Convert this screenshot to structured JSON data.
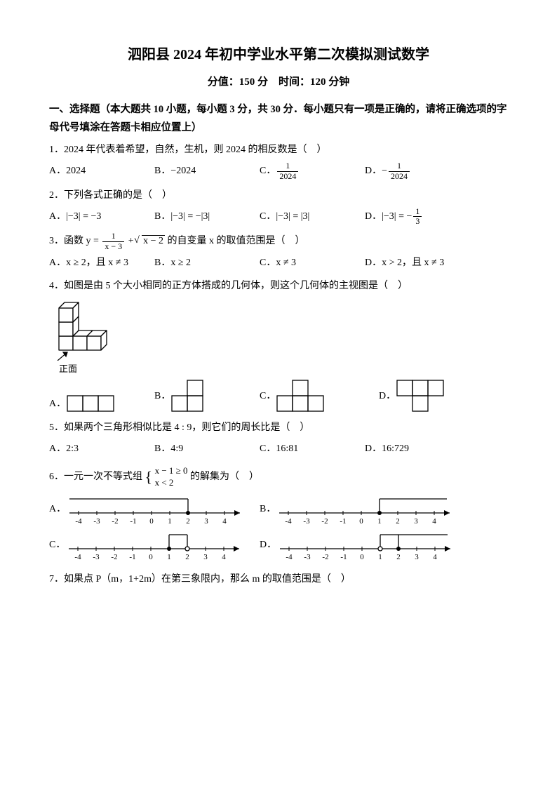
{
  "title": "泗阳县 2024 年初中学业水平第二次模拟测试数学",
  "subtitle_score": "分值：150 分",
  "subtitle_time": "时间：120 分钟",
  "section1": "一、选择题（本大题共 10 小题，每小题 3 分，共 30 分．每小题只有一项是正确的，请将正确选项的字母代号填涂在答题卡相应位置上）",
  "q1": {
    "stem": "1．2024 年代表着希望，自然，生机，则 2024 的相反数是（　）",
    "a": "A．2024",
    "b": "B．−2024",
    "c_pre": "C．",
    "c_num": "1",
    "c_den": "2024",
    "d_pre": "D．−",
    "d_num": "1",
    "d_den": "2024"
  },
  "q2": {
    "stem": "2．下列各式正确的是（　）",
    "a": "A．|−3| = −3",
    "b": "B．|−3| = −|3|",
    "c": "C．|−3| = |3|",
    "d_pre": "D．|−3| = −",
    "d_num": "1",
    "d_den": "3"
  },
  "q3": {
    "stem_pre": "3．函数 y = ",
    "stem_num": "1",
    "stem_den": "x − 3",
    "stem_mid": " + ",
    "stem_rad": "x − 2",
    "stem_post": " 的自变量 x 的取值范围是（　）",
    "a": "A．x ≥ 2，且 x ≠ 3",
    "b": "B．x ≥ 2",
    "c": "C．x ≠ 3",
    "d": "D．x > 2，且 x ≠ 3"
  },
  "q4": {
    "stem": "4．如图是由 5 个大小相同的正方体搭成的几何体，则这个几何体的主视图是（　）",
    "front": "正面",
    "a": "A．",
    "b": "B．",
    "c": "C．",
    "d": "D．"
  },
  "q5": {
    "stem": "5．如果两个三角形相似比是 4 : 9，则它们的周长比是（　）",
    "a": "A．2:3",
    "b": "B．4:9",
    "c": "C．16:81",
    "d": "D．16:729"
  },
  "q6": {
    "stem_pre": "6．一元一次不等式组 ",
    "line1": "x − 1 ≥ 0",
    "line2": "x < 2",
    "stem_post": " 的解集为（　）",
    "a": "A．",
    "b": "B．",
    "c": "C．",
    "d": "D．",
    "ticks": [
      "-4",
      "-3",
      "-2",
      "-1",
      "0",
      "1",
      "2",
      "3",
      "4"
    ]
  },
  "q7": {
    "stem": "7．如果点 P（m，1+2m）在第三象限内，那么 m 的取值范围是（　）"
  },
  "colors": {
    "bg": "#ffffff",
    "fg": "#000000"
  }
}
